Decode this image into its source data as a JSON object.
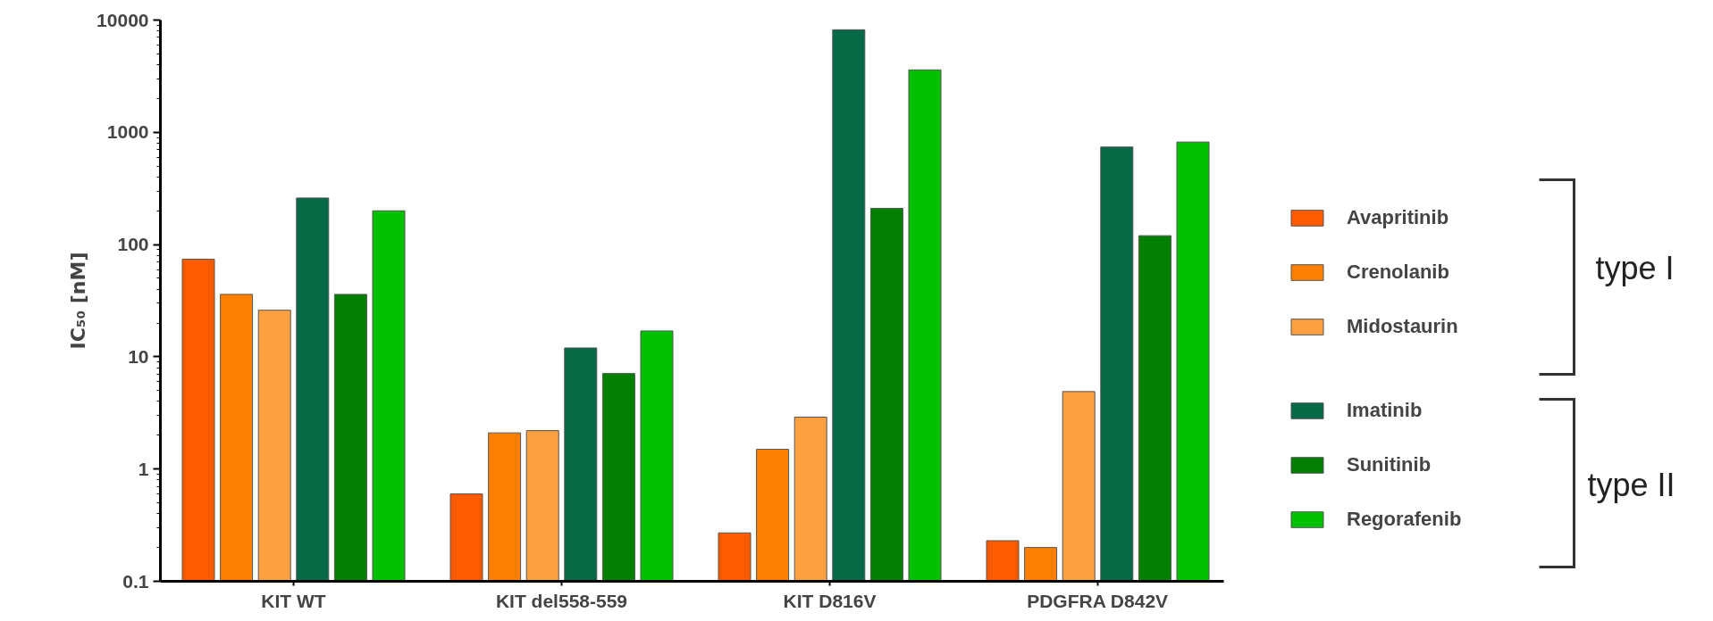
{
  "chart_data": {
    "type": "bar",
    "ylabel": "IC₅₀ [nM]",
    "log": true,
    "grid": false,
    "legend": "right",
    "categories": [
      "KIT WT",
      "KIT del558-559",
      "KIT D816V",
      "PDGFRA D842V"
    ],
    "ylim": [
      0.1,
      10000
    ],
    "yticks": [
      0.1,
      1,
      10,
      100,
      1000,
      10000
    ],
    "series": [
      {
        "name": "Avapritinib",
        "color": "#ff5a00",
        "values": [
          74,
          0.6,
          0.27,
          0.23
        ]
      },
      {
        "name": "Crenolanib",
        "color": "#ff8000",
        "values": [
          36,
          2.1,
          1.5,
          0.2
        ]
      },
      {
        "name": "Midostaurin",
        "color": "#ffa040",
        "values": [
          26,
          2.2,
          2.9,
          4.9
        ]
      },
      {
        "name": "Imatinib",
        "color": "#066a46",
        "values": [
          260,
          12,
          8200,
          740
        ]
      },
      {
        "name": "Sunitinib",
        "color": "#007f00",
        "values": [
          36,
          7.1,
          210,
          120
        ]
      },
      {
        "name": "Regorafenib",
        "color": "#00c000",
        "values": [
          200,
          17,
          3600,
          820
        ]
      }
    ],
    "annotations": [
      "type I",
      "type II"
    ]
  }
}
